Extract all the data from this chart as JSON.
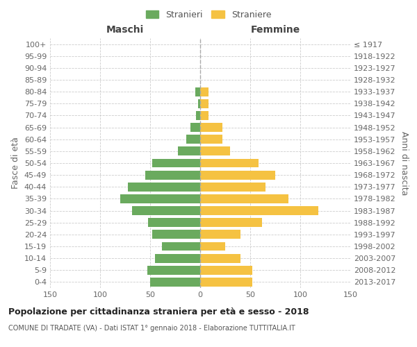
{
  "age_groups": [
    "0-4",
    "5-9",
    "10-14",
    "15-19",
    "20-24",
    "25-29",
    "30-34",
    "35-39",
    "40-44",
    "45-49",
    "50-54",
    "55-59",
    "60-64",
    "65-69",
    "70-74",
    "75-79",
    "80-84",
    "85-89",
    "90-94",
    "95-99",
    "100+"
  ],
  "birth_years": [
    "2013-2017",
    "2008-2012",
    "2003-2007",
    "1998-2002",
    "1993-1997",
    "1988-1992",
    "1983-1987",
    "1978-1982",
    "1973-1977",
    "1968-1972",
    "1963-1967",
    "1958-1962",
    "1953-1957",
    "1948-1952",
    "1943-1947",
    "1938-1942",
    "1933-1937",
    "1928-1932",
    "1923-1927",
    "1918-1922",
    "≤ 1917"
  ],
  "maschi": [
    50,
    53,
    45,
    38,
    48,
    52,
    68,
    80,
    72,
    55,
    48,
    22,
    14,
    10,
    4,
    2,
    5,
    0,
    0,
    0,
    0
  ],
  "femmine": [
    52,
    52,
    40,
    25,
    40,
    62,
    118,
    88,
    65,
    75,
    58,
    30,
    22,
    22,
    8,
    8,
    8,
    0,
    0,
    0,
    0
  ],
  "color_maschi": "#6aaa5e",
  "color_femmine": "#f5c242",
  "title": "Popolazione per cittadinanza straniera per età e sesso - 2018",
  "subtitle": "COMUNE DI TRADATE (VA) - Dati ISTAT 1° gennaio 2018 - Elaborazione TUTTITALIA.IT",
  "ylabel_left": "Fasce di età",
  "ylabel_right": "Anni di nascita",
  "xlabel_left": "Maschi",
  "xlabel_right": "Femmine",
  "legend_maschi": "Stranieri",
  "legend_femmine": "Straniere",
  "xlim": 150,
  "background_color": "#ffffff",
  "grid_color": "#cccccc"
}
